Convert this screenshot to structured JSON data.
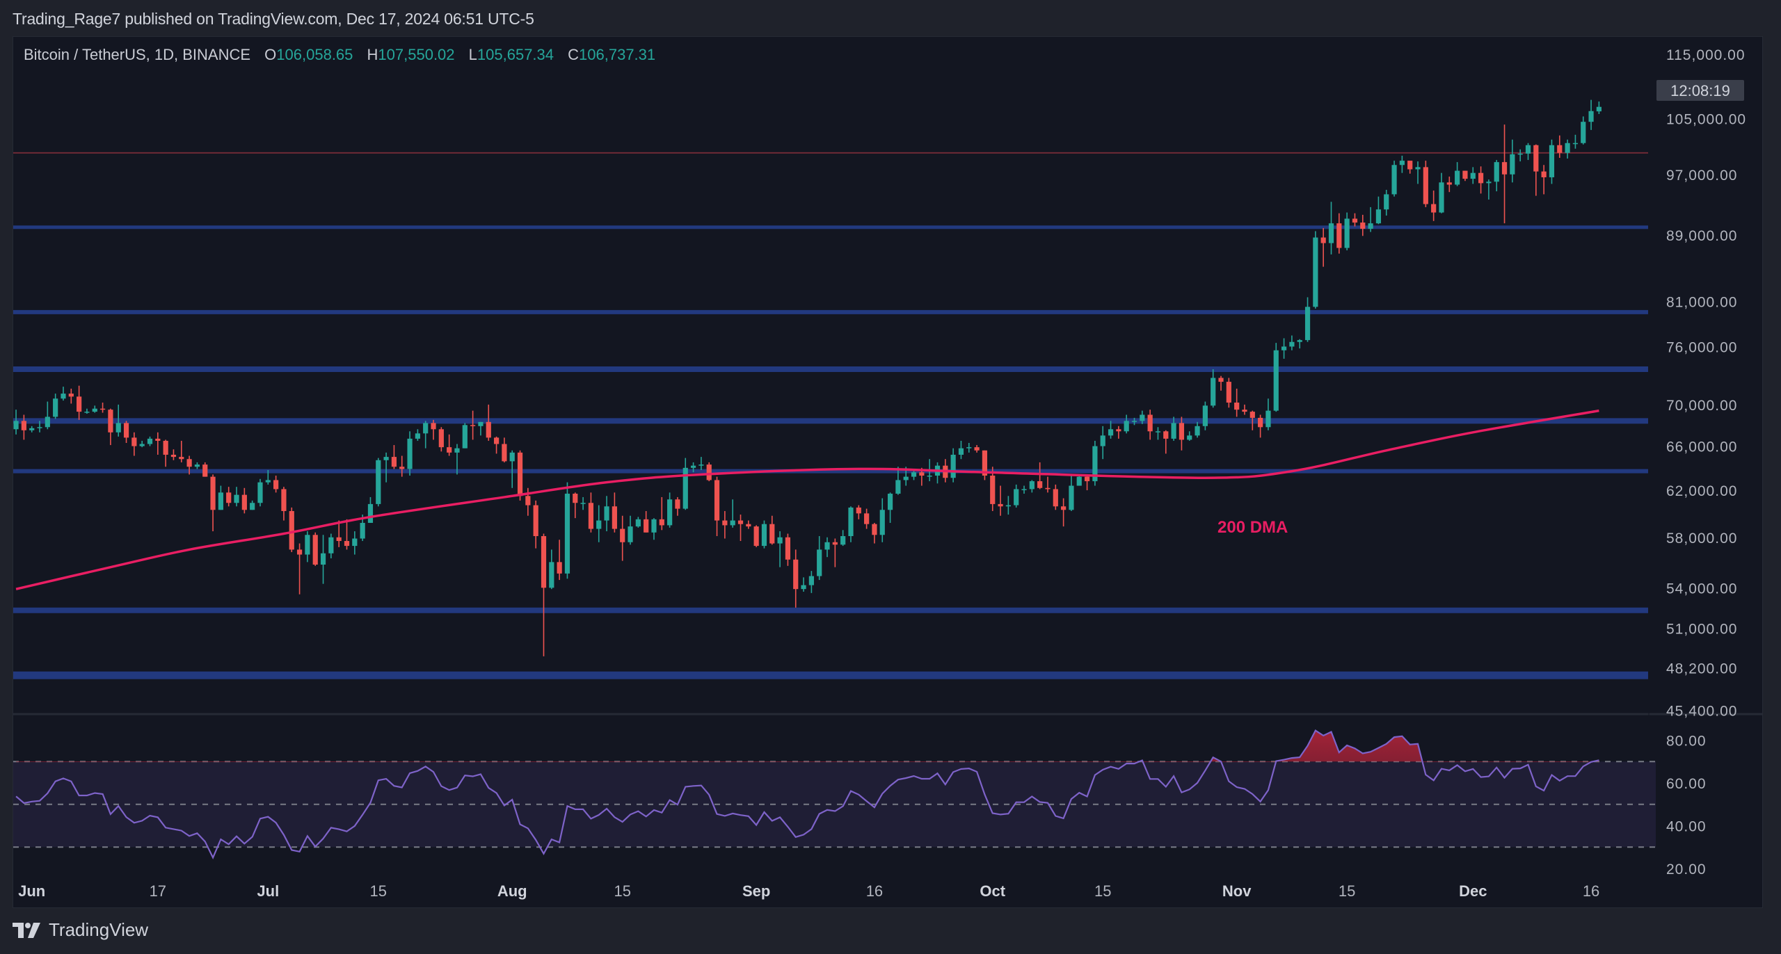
{
  "header": {
    "published_line": "Trading_Rage7 published on TradingView.com, Dec 17, 2024 06:51 UTC-5"
  },
  "legend": {
    "symbol": "Bitcoin / TetherUS, 1D, BINANCE",
    "open_label": "O",
    "open": "106,058.65",
    "high_label": "H",
    "high": "107,550.02",
    "low_label": "L",
    "low": "105,657.34",
    "close_label": "C",
    "close": "106,737.31"
  },
  "countdown": "12:08:19",
  "footer": {
    "brand": "TradingView"
  },
  "colors": {
    "up": "#26a69a",
    "down": "#ef5350",
    "ma": "#e91e63",
    "rsi": "#7e63c9",
    "level_blue": "#22397f",
    "level_red": "#6f2a36",
    "background": "#131621"
  },
  "chart_data": {
    "type": "candlestick",
    "scale": "log",
    "ylim": [
      45400,
      115000
    ],
    "yticks": [
      115000,
      105000,
      97000,
      89000,
      81000,
      76000,
      70000,
      66000,
      62000,
      58000,
      54000,
      51000,
      48200,
      45400
    ],
    "xlim": [
      "2024-05-30",
      "2024-12-24"
    ],
    "xticks": [
      {
        "date": "2024-06-01",
        "label": "Jun",
        "month": true
      },
      {
        "date": "2024-06-17",
        "label": "17",
        "month": false
      },
      {
        "date": "2024-07-01",
        "label": "Jul",
        "month": true
      },
      {
        "date": "2024-07-15",
        "label": "15",
        "month": false
      },
      {
        "date": "2024-08-01",
        "label": "Aug",
        "month": true
      },
      {
        "date": "2024-08-15",
        "label": "15",
        "month": false
      },
      {
        "date": "2024-09-01",
        "label": "Sep",
        "month": true
      },
      {
        "date": "2024-09-16",
        "label": "16",
        "month": false
      },
      {
        "date": "2024-10-01",
        "label": "Oct",
        "month": true
      },
      {
        "date": "2024-10-15",
        "label": "15",
        "month": false
      },
      {
        "date": "2024-11-01",
        "label": "Nov",
        "month": true
      },
      {
        "date": "2024-11-15",
        "label": "15",
        "month": false
      },
      {
        "date": "2024-12-01",
        "label": "Dec",
        "month": true
      },
      {
        "date": "2024-12-16",
        "label": "16",
        "month": false
      }
    ],
    "start_date": "2024-05-30",
    "first_open": 67600,
    "last_open": 106058.65,
    "hlc": [
      [
        69500,
        67100,
        68400
      ],
      [
        69000,
        66600,
        67500
      ],
      [
        67900,
        67300,
        67700
      ],
      [
        68400,
        67300,
        67800
      ],
      [
        70300,
        67600,
        68800
      ],
      [
        71100,
        68600,
        70600
      ],
      [
        71800,
        70400,
        71100
      ],
      [
        71600,
        70100,
        70800
      ],
      [
        71900,
        68500,
        69300
      ],
      [
        69600,
        69100,
        69300
      ],
      [
        69900,
        69200,
        69600
      ],
      [
        70200,
        69200,
        69500
      ],
      [
        69600,
        66100,
        67300
      ],
      [
        70000,
        66900,
        68200
      ],
      [
        68400,
        66300,
        66800
      ],
      [
        67300,
        65100,
        66000
      ],
      [
        66500,
        65900,
        66200
      ],
      [
        66900,
        66000,
        66700
      ],
      [
        67300,
        65200,
        66500
      ],
      [
        66600,
        64100,
        65200
      ],
      [
        65700,
        64700,
        65000
      ],
      [
        66500,
        64500,
        64800
      ],
      [
        65100,
        63400,
        64100
      ],
      [
        64500,
        63900,
        64300
      ],
      [
        64500,
        63200,
        63200
      ],
      [
        63400,
        58500,
        60300
      ],
      [
        62400,
        60300,
        61800
      ],
      [
        62300,
        60600,
        60900
      ],
      [
        62300,
        60600,
        61600
      ],
      [
        62200,
        60000,
        60300
      ],
      [
        61100,
        60300,
        60900
      ],
      [
        63000,
        60600,
        62700
      ],
      [
        63800,
        62500,
        62900
      ],
      [
        63300,
        61800,
        62100
      ],
      [
        62300,
        59400,
        60200
      ],
      [
        60500,
        56800,
        57000
      ],
      [
        57500,
        53500,
        56600
      ],
      [
        58500,
        56000,
        58200
      ],
      [
        58400,
        55700,
        55800
      ],
      [
        58200,
        54300,
        56700
      ],
      [
        58300,
        56300,
        58000
      ],
      [
        59400,
        57200,
        57700
      ],
      [
        59500,
        57000,
        57300
      ],
      [
        58500,
        56600,
        57900
      ],
      [
        59900,
        57700,
        59200
      ],
      [
        61400,
        59200,
        60800
      ],
      [
        64900,
        60600,
        64700
      ],
      [
        65400,
        62700,
        65000
      ],
      [
        66100,
        63900,
        64100
      ],
      [
        65100,
        63200,
        63900
      ],
      [
        67400,
        63300,
        66700
      ],
      [
        67600,
        66500,
        67200
      ],
      [
        68400,
        65800,
        68200
      ],
      [
        68500,
        66600,
        67600
      ],
      [
        67800,
        65500,
        65900
      ],
      [
        67100,
        65100,
        65400
      ],
      [
        66200,
        63400,
        65800
      ],
      [
        68200,
        65800,
        68000
      ],
      [
        69400,
        66600,
        67900
      ],
      [
        68300,
        67000,
        68300
      ],
      [
        70000,
        66500,
        66800
      ],
      [
        66900,
        65300,
        66200
      ],
      [
        66800,
        64500,
        64600
      ],
      [
        65600,
        62200,
        65400
      ],
      [
        65600,
        61100,
        61500
      ],
      [
        62200,
        59800,
        60700
      ],
      [
        61100,
        57100,
        58100
      ],
      [
        58300,
        49000,
        54000
      ],
      [
        57000,
        53900,
        56000
      ],
      [
        57800,
        54600,
        55100
      ],
      [
        62700,
        54700,
        61700
      ],
      [
        61800,
        59600,
        60900
      ],
      [
        61400,
        60300,
        60900
      ],
      [
        61800,
        58400,
        58700
      ],
      [
        60700,
        57600,
        59400
      ],
      [
        61500,
        58500,
        60600
      ],
      [
        61800,
        58400,
        58700
      ],
      [
        59800,
        56100,
        57600
      ],
      [
        59800,
        57400,
        58900
      ],
      [
        59700,
        58800,
        59500
      ],
      [
        60200,
        58400,
        58400
      ],
      [
        59600,
        57800,
        59500
      ],
      [
        61400,
        58600,
        59000
      ],
      [
        61800,
        58800,
        61200
      ],
      [
        61400,
        59800,
        60400
      ],
      [
        64900,
        60300,
        64000
      ],
      [
        64500,
        63600,
        64200
      ],
      [
        65000,
        63800,
        64300
      ],
      [
        64500,
        62800,
        62900
      ],
      [
        63200,
        58100,
        59400
      ],
      [
        60200,
        57900,
        59000
      ],
      [
        61200,
        58800,
        59400
      ],
      [
        59900,
        57700,
        59100
      ],
      [
        59400,
        58700,
        58900
      ],
      [
        59000,
        57200,
        57300
      ],
      [
        59400,
        57100,
        59100
      ],
      [
        59800,
        57400,
        57500
      ],
      [
        58500,
        55600,
        58000
      ],
      [
        58300,
        55700,
        56200
      ],
      [
        57000,
        52500,
        53900
      ],
      [
        54800,
        53700,
        54200
      ],
      [
        55300,
        53600,
        54900
      ],
      [
        58100,
        54600,
        57000
      ],
      [
        58000,
        56400,
        57600
      ],
      [
        57900,
        55600,
        57400
      ],
      [
        58600,
        57300,
        58100
      ],
      [
        60600,
        57600,
        60500
      ],
      [
        60700,
        59500,
        60000
      ],
      [
        60400,
        58700,
        59100
      ],
      [
        59200,
        57500,
        58200
      ],
      [
        61300,
        57600,
        60300
      ],
      [
        61800,
        59200,
        61700
      ],
      [
        64100,
        61600,
        62900
      ],
      [
        64100,
        62400,
        63200
      ],
      [
        63800,
        62900,
        63600
      ],
      [
        64000,
        62400,
        63300
      ],
      [
        64800,
        62800,
        63300
      ],
      [
        64500,
        62600,
        64200
      ],
      [
        64800,
        62700,
        63100
      ],
      [
        65800,
        62700,
        65200
      ],
      [
        66500,
        64800,
        65800
      ],
      [
        66300,
        65400,
        65900
      ],
      [
        66100,
        65400,
        65600
      ],
      [
        65600,
        62900,
        63300
      ],
      [
        64100,
        60200,
        60800
      ],
      [
        62400,
        59800,
        60600
      ],
      [
        61500,
        59900,
        60700
      ],
      [
        62500,
        60500,
        62100
      ],
      [
        62400,
        61700,
        62100
      ],
      [
        62900,
        61800,
        62800
      ],
      [
        64500,
        62100,
        62200
      ],
      [
        63200,
        61800,
        62100
      ],
      [
        62500,
        60300,
        60600
      ],
      [
        61300,
        58900,
        60300
      ],
      [
        63400,
        60200,
        62400
      ],
      [
        63400,
        62400,
        63200
      ],
      [
        63300,
        62000,
        62800
      ],
      [
        66500,
        62400,
        66000
      ],
      [
        67900,
        64800,
        67000
      ],
      [
        68400,
        66700,
        67600
      ],
      [
        67900,
        66700,
        67400
      ],
      [
        69000,
        67200,
        68400
      ],
      [
        68700,
        68000,
        68400
      ],
      [
        69400,
        68100,
        69000
      ],
      [
        69500,
        66600,
        67400
      ],
      [
        67800,
        66600,
        67400
      ],
      [
        67500,
        65300,
        66700
      ],
      [
        68800,
        66500,
        68200
      ],
      [
        68800,
        65600,
        66600
      ],
      [
        67400,
        66500,
        67000
      ],
      [
        68300,
        66800,
        67900
      ],
      [
        70300,
        67500,
        69900
      ],
      [
        73600,
        69700,
        72700
      ],
      [
        72900,
        71400,
        72300
      ],
      [
        72700,
        69700,
        70200
      ],
      [
        71600,
        68800,
        69500
      ],
      [
        70000,
        69000,
        69300
      ],
      [
        69400,
        67500,
        68700
      ],
      [
        69000,
        66800,
        67800
      ],
      [
        70600,
        67500,
        69400
      ],
      [
        76400,
        69300,
        75600
      ],
      [
        76900,
        74700,
        76000
      ],
      [
        77200,
        75600,
        76500
      ],
      [
        76800,
        75800,
        76700
      ],
      [
        81500,
        76500,
        80400
      ],
      [
        89500,
        80200,
        88700
      ],
      [
        89900,
        85100,
        88000
      ],
      [
        93300,
        86600,
        90500
      ],
      [
        91800,
        86700,
        87400
      ],
      [
        91900,
        87100,
        91100
      ],
      [
        91800,
        90100,
        90600
      ],
      [
        91600,
        88900,
        89800
      ],
      [
        92600,
        89400,
        90500
      ],
      [
        94000,
        90400,
        92300
      ],
      [
        94900,
        91500,
        94300
      ],
      [
        98900,
        94000,
        98300
      ],
      [
        99600,
        97200,
        98900
      ],
      [
        98700,
        97100,
        97700
      ],
      [
        98800,
        95700,
        98000
      ],
      [
        98900,
        92600,
        93000
      ],
      [
        94800,
        90800,
        91900
      ],
      [
        97200,
        91800,
        95900
      ],
      [
        96700,
        94600,
        95600
      ],
      [
        98700,
        95400,
        97500
      ],
      [
        97500,
        96100,
        96400
      ],
      [
        98000,
        95700,
        97200
      ],
      [
        98100,
        94400,
        95800
      ],
      [
        96300,
        93600,
        96000
      ],
      [
        99000,
        94700,
        98700
      ],
      [
        104100,
        90500,
        97000
      ],
      [
        101900,
        95900,
        99800
      ],
      [
        100500,
        98800,
        99900
      ],
      [
        101400,
        99000,
        101100
      ],
      [
        101200,
        94100,
        97400
      ],
      [
        98300,
        94300,
        96600
      ],
      [
        101900,
        95700,
        101100
      ],
      [
        102500,
        99300,
        100000
      ],
      [
        101900,
        99200,
        101400
      ],
      [
        102600,
        100600,
        101400
      ],
      [
        105300,
        101200,
        104500
      ],
      [
        107800,
        103300,
        106100
      ],
      [
        107550.02,
        105657.34,
        106737.31
      ]
    ],
    "ma200": {
      "label": "200 DMA",
      "points": [
        [
          "2024-05-30",
          53900
        ],
        [
          "2024-06-11",
          55600
        ],
        [
          "2024-06-21",
          57000
        ],
        [
          "2024-07-03",
          58300
        ],
        [
          "2024-07-14",
          59700
        ],
        [
          "2024-07-31",
          61400
        ],
        [
          "2024-08-13",
          62700
        ],
        [
          "2024-08-25",
          63400
        ],
        [
          "2024-09-14",
          63900
        ],
        [
          "2024-09-30",
          63600
        ],
        [
          "2024-10-28",
          63100
        ],
        [
          "2024-11-08",
          63700
        ],
        [
          "2024-11-20",
          65600
        ],
        [
          "2024-12-01",
          67300
        ],
        [
          "2024-12-17",
          69400
        ]
      ]
    },
    "levels": [
      {
        "price": 100000,
        "kind": "red"
      },
      {
        "price": 90000,
        "kind": "blue"
      },
      {
        "price": 79800,
        "kind": "blue"
      },
      {
        "price": 73600,
        "kind": "blue"
      },
      {
        "price": 68400,
        "kind": "blue"
      },
      {
        "price": 63700,
        "kind": "blue"
      },
      {
        "price": 52300,
        "kind": "blue"
      },
      {
        "price": 47700,
        "kind": "blue"
      }
    ],
    "rsi": {
      "ylim": [
        20,
        85
      ],
      "yticks": [
        80,
        60,
        40,
        20
      ],
      "bands": [
        70,
        50,
        30
      ]
    }
  }
}
